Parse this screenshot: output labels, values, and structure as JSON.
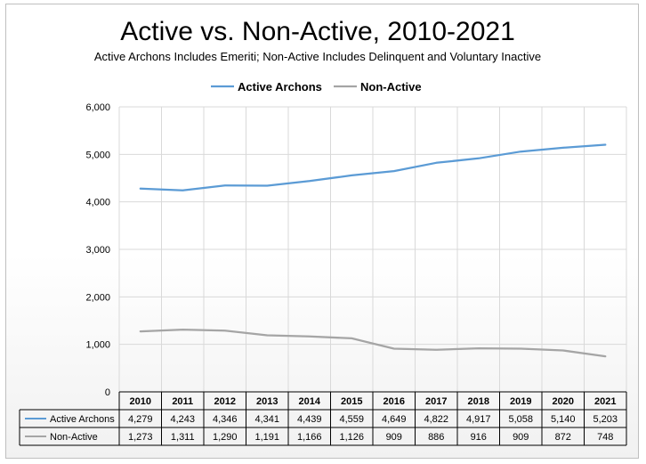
{
  "chart_data": {
    "type": "line",
    "title": "Active vs. Non-Active, 2010-2021",
    "subtitle": "Active Archons Includes Emeriti; Non-Active Includes Delinquent and Voluntary Inactive",
    "categories": [
      "2010",
      "2011",
      "2012",
      "2013",
      "2014",
      "2015",
      "2016",
      "2017",
      "2018",
      "2019",
      "2020",
      "2021"
    ],
    "series": [
      {
        "name": "Active Archons",
        "color": "#5b9bd5",
        "values": [
          4279,
          4243,
          4346,
          4341,
          4439,
          4559,
          4649,
          4822,
          4917,
          5058,
          5140,
          5203
        ],
        "labels": [
          "4,279",
          "4,243",
          "4,346",
          "4,341",
          "4,439",
          "4,559",
          "4,649",
          "4,822",
          "4,917",
          "5,058",
          "5,140",
          "5,203"
        ]
      },
      {
        "name": "Non-Active",
        "color": "#a5a5a5",
        "values": [
          1273,
          1311,
          1290,
          1191,
          1166,
          1126,
          909,
          886,
          916,
          909,
          872,
          748
        ],
        "labels": [
          "1,273",
          "1,311",
          "1,290",
          "1,191",
          "1,166",
          "1,126",
          "909",
          "886",
          "916",
          "909",
          "872",
          "748"
        ]
      }
    ],
    "ylim": [
      0,
      6000
    ],
    "yticks": [
      0,
      1000,
      2000,
      3000,
      4000,
      5000,
      6000
    ],
    "ytick_labels": [
      "0",
      "1,000",
      "2,000",
      "3,000",
      "4,000",
      "5,000",
      "6,000"
    ],
    "grid": true,
    "legend_position": "top-center",
    "data_table": true
  }
}
